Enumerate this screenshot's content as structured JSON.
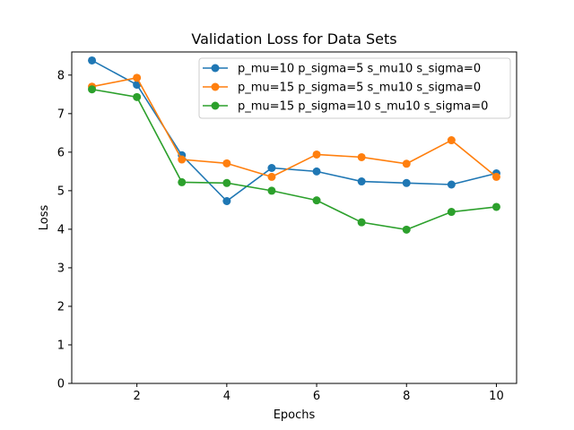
{
  "chart_data": {
    "type": "line",
    "title": "Validation Loss for Data Sets",
    "xlabel": "Epochs",
    "ylabel": "Loss",
    "xlim": [
      0.55,
      10.45
    ],
    "ylim": [
      0,
      8.6
    ],
    "xticks": [
      2,
      4,
      6,
      8,
      10
    ],
    "yticks": [
      0,
      1,
      2,
      3,
      4,
      5,
      6,
      7,
      8
    ],
    "grid": false,
    "legend_position": "top-right",
    "x": [
      1,
      2,
      3,
      4,
      5,
      6,
      7,
      8,
      9,
      10
    ],
    "series": [
      {
        "name": "p_mu=10 p_sigma=5 s_mu10 s_sigma=0",
        "color": "#1f77b4",
        "values": [
          8.38,
          7.75,
          5.92,
          4.73,
          5.59,
          5.5,
          5.24,
          5.2,
          5.16,
          5.45
        ]
      },
      {
        "name": "p_mu=15 p_sigma=5 s_mu10 s_sigma=0",
        "color": "#ff7f0e",
        "values": [
          7.7,
          7.93,
          5.81,
          5.71,
          5.36,
          5.94,
          5.87,
          5.7,
          6.31,
          5.36
        ]
      },
      {
        "name": "p_mu=15 p_sigma=10 s_mu10 s_sigma=0",
        "color": "#2ca02c",
        "values": [
          7.63,
          7.43,
          5.22,
          5.2,
          5.0,
          4.75,
          4.18,
          3.99,
          4.45,
          4.58
        ]
      }
    ]
  }
}
